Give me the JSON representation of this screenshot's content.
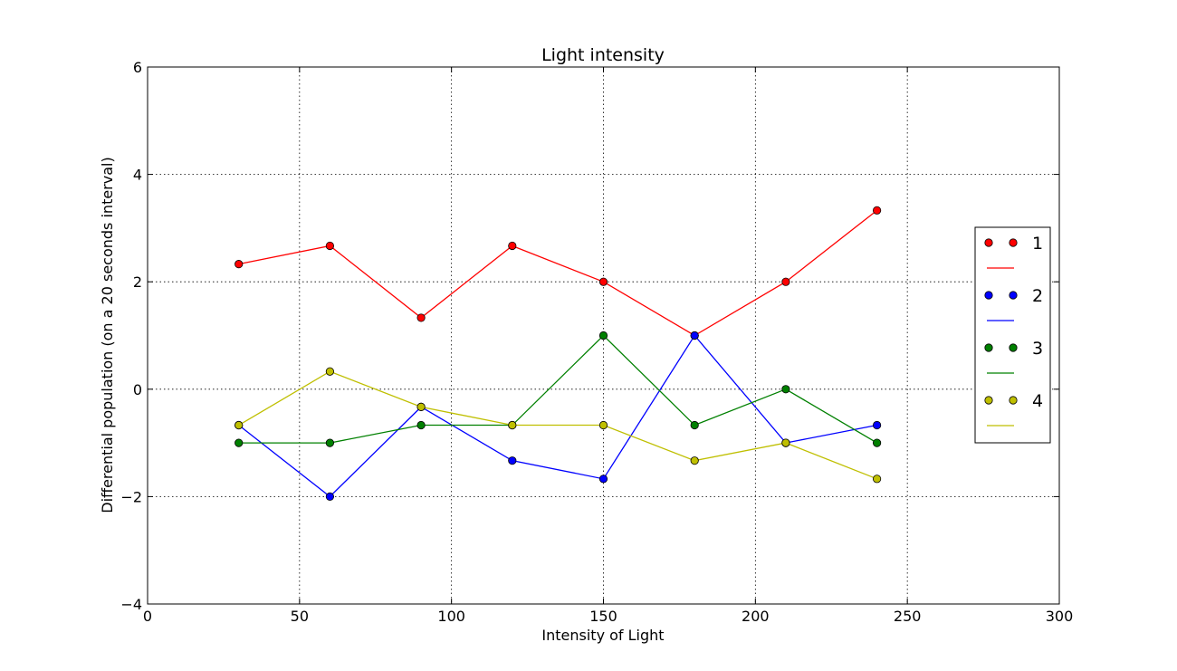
{
  "chart_data": {
    "type": "line",
    "title": "Light intensity",
    "xlabel": "Intensity of Light",
    "ylabel": "Differential population (on a 20 seconds interval)",
    "xlim": [
      0,
      300
    ],
    "ylim": [
      -4,
      6
    ],
    "xticks": [
      0,
      50,
      100,
      150,
      200,
      250,
      300
    ],
    "yticks": [
      -4,
      -2,
      0,
      2,
      4,
      6
    ],
    "grid": true,
    "legend_position": "right",
    "x": [
      30,
      60,
      90,
      120,
      150,
      180,
      210,
      240
    ],
    "series": [
      {
        "name": "1",
        "color": "#ff0000",
        "values": [
          2.33,
          2.67,
          1.33,
          2.67,
          2.0,
          1.0,
          2.0,
          3.33
        ]
      },
      {
        "name": "2",
        "color": "#0000ff",
        "values": [
          -0.67,
          -2.0,
          -0.33,
          -1.33,
          -1.67,
          1.0,
          -1.0,
          -0.67
        ]
      },
      {
        "name": "3",
        "color": "#008000",
        "values": [
          -1.0,
          -1.0,
          -0.67,
          -0.67,
          1.0,
          -0.67,
          0.0,
          -1.0
        ]
      },
      {
        "name": "4",
        "color": "#bfbf00",
        "values": [
          -0.67,
          0.33,
          -0.33,
          -0.67,
          -0.67,
          -1.33,
          -1.0,
          -1.67
        ]
      }
    ]
  }
}
